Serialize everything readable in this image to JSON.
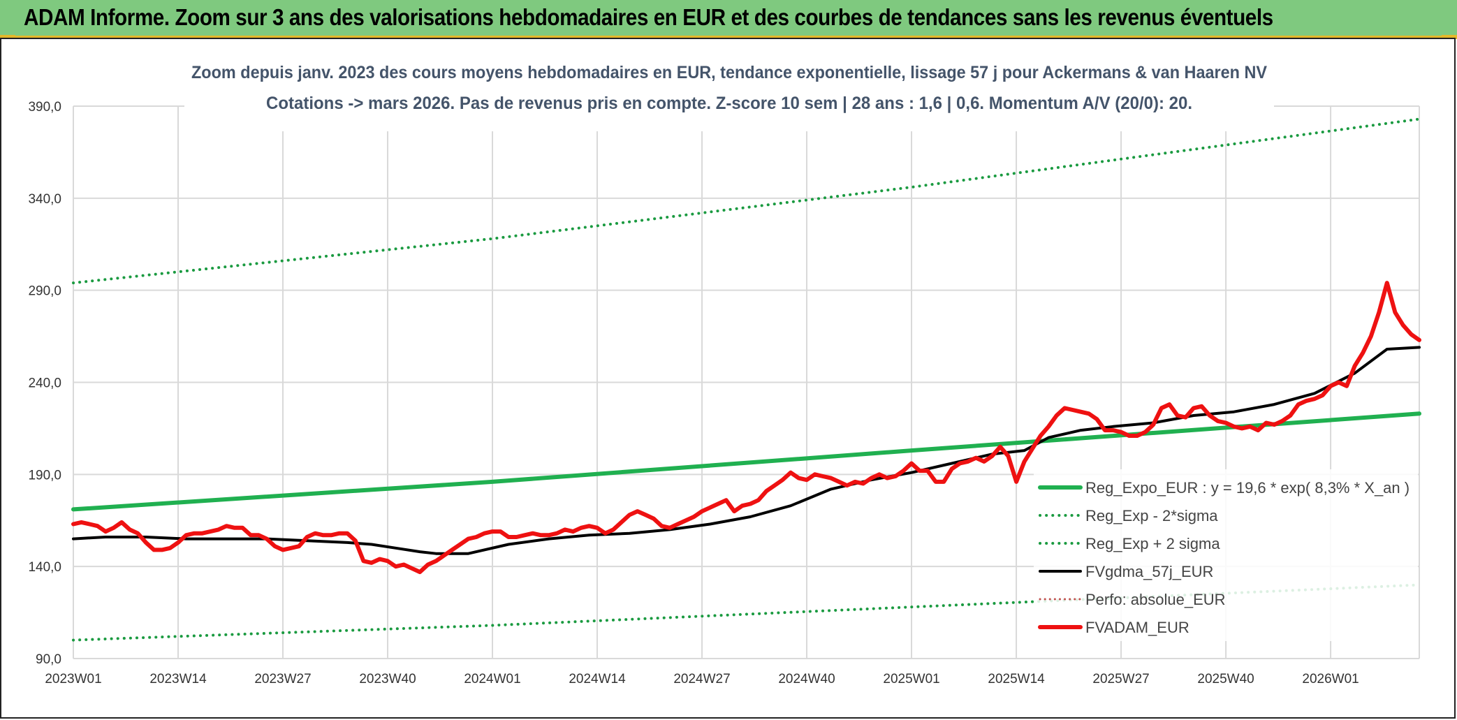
{
  "header": {
    "title": "ADAM Informe. Zoom sur 3 ans des valorisations hebdomadaires en EUR et des courbes de tendances sans les revenus éventuels"
  },
  "colors": {
    "banner": "#7fc97f",
    "accent": "#e3b72a",
    "reg_expo": "#20b050",
    "reg_band": "#1a9a40",
    "gdma": "#000000",
    "fvadam": "#ee1111",
    "perfo": "#c0504d",
    "grid": "#d9d9d9"
  },
  "chart_data": {
    "type": "line",
    "title": "Zoom depuis janv. 2023 des cours moyens hebdomadaires en EUR, tendance exponentielle, lissage 57 j pour Ackermans & van Haaren NV",
    "subtitle": "Cotations -> mars 2026. Pas de revenus pris en compte. Z-score 10 sem | 28 ans : 1,6 | 0,6. Momentum A/V (20/0): 20.",
    "xlabel": "",
    "ylabel": "",
    "ylim": [
      90,
      390
    ],
    "yticks": [
      "90,0",
      "140,0",
      "190,0",
      "240,0",
      "290,0",
      "340,0",
      "390,0"
    ],
    "ytick_values": [
      90,
      140,
      190,
      240,
      290,
      340,
      390
    ],
    "x_range": [
      1,
      168
    ],
    "xticks": [
      "2023W01",
      "2023W14",
      "2023W27",
      "2023W40",
      "2024W01",
      "2024W14",
      "2024W27",
      "2024W40",
      "2025W01",
      "2025W14",
      "2025W27",
      "2025W40",
      "2026W01"
    ],
    "xtick_weeks": [
      1,
      14,
      27,
      40,
      53,
      66,
      79,
      92,
      105,
      118,
      131,
      144,
      157
    ],
    "grid": true,
    "legend_position": "right",
    "series": [
      {
        "name": "Reg_Expo_EUR : y = 19,6 * exp( 8,3% *  X_an )",
        "style": "solid-thick",
        "color_key": "reg_expo",
        "points": [
          [
            1,
            171
          ],
          [
            53,
            186
          ],
          [
            105,
            203
          ],
          [
            168,
            223
          ]
        ]
      },
      {
        "name": "Reg_Exp - 2*sigma",
        "style": "dotted",
        "color_key": "reg_band",
        "points": [
          [
            1,
            100
          ],
          [
            53,
            108
          ],
          [
            105,
            118
          ],
          [
            168,
            130
          ]
        ]
      },
      {
        "name": "Reg_Exp + 2 sigma",
        "style": "dotted",
        "color_key": "reg_band",
        "points": [
          [
            1,
            294
          ],
          [
            53,
            318
          ],
          [
            105,
            346
          ],
          [
            168,
            383
          ]
        ]
      },
      {
        "name": "FVgdma_57j_EUR",
        "style": "solid",
        "color_key": "gdma",
        "points": [
          [
            1,
            155
          ],
          [
            5,
            156
          ],
          [
            10,
            156
          ],
          [
            15,
            155
          ],
          [
            20,
            155
          ],
          [
            25,
            155
          ],
          [
            30,
            154
          ],
          [
            35,
            153
          ],
          [
            38,
            152
          ],
          [
            41,
            150
          ],
          [
            44,
            148
          ],
          [
            46,
            147
          ],
          [
            50,
            147
          ],
          [
            55,
            152
          ],
          [
            60,
            155
          ],
          [
            65,
            157
          ],
          [
            70,
            158
          ],
          [
            75,
            160
          ],
          [
            80,
            163
          ],
          [
            85,
            167
          ],
          [
            90,
            173
          ],
          [
            95,
            182
          ],
          [
            100,
            187
          ],
          [
            105,
            191
          ],
          [
            110,
            196
          ],
          [
            115,
            201
          ],
          [
            119,
            203
          ],
          [
            122,
            210
          ],
          [
            126,
            214
          ],
          [
            130,
            216
          ],
          [
            135,
            218
          ],
          [
            140,
            222
          ],
          [
            145,
            224
          ],
          [
            150,
            228
          ],
          [
            155,
            234
          ],
          [
            160,
            245
          ],
          [
            164,
            258
          ],
          [
            168,
            259
          ]
        ]
      },
      {
        "name": "Perfo: absolue_EUR",
        "style": "dotted-thin",
        "color_key": "perfo",
        "points": []
      },
      {
        "name": "FVADAM_EUR",
        "style": "solid-thick",
        "color_key": "fvadam",
        "points": [
          [
            1,
            163
          ],
          [
            2,
            164
          ],
          [
            3,
            163
          ],
          [
            4,
            162
          ],
          [
            5,
            159
          ],
          [
            6,
            161
          ],
          [
            7,
            164
          ],
          [
            8,
            160
          ],
          [
            9,
            158
          ],
          [
            10,
            153
          ],
          [
            11,
            149
          ],
          [
            12,
            149
          ],
          [
            13,
            150
          ],
          [
            14,
            153
          ],
          [
            15,
            157
          ],
          [
            16,
            158
          ],
          [
            17,
            158
          ],
          [
            18,
            159
          ],
          [
            19,
            160
          ],
          [
            20,
            162
          ],
          [
            21,
            161
          ],
          [
            22,
            161
          ],
          [
            23,
            157
          ],
          [
            24,
            157
          ],
          [
            25,
            155
          ],
          [
            26,
            151
          ],
          [
            27,
            149
          ],
          [
            28,
            150
          ],
          [
            29,
            151
          ],
          [
            30,
            156
          ],
          [
            31,
            158
          ],
          [
            32,
            157
          ],
          [
            33,
            157
          ],
          [
            34,
            158
          ],
          [
            35,
            158
          ],
          [
            36,
            154
          ],
          [
            37,
            143
          ],
          [
            38,
            142
          ],
          [
            39,
            144
          ],
          [
            40,
            143
          ],
          [
            41,
            140
          ],
          [
            42,
            141
          ],
          [
            43,
            139
          ],
          [
            44,
            137
          ],
          [
            45,
            141
          ],
          [
            46,
            143
          ],
          [
            47,
            146
          ],
          [
            48,
            149
          ],
          [
            49,
            152
          ],
          [
            50,
            155
          ],
          [
            51,
            156
          ],
          [
            52,
            158
          ],
          [
            53,
            159
          ],
          [
            54,
            159
          ],
          [
            55,
            156
          ],
          [
            56,
            156
          ],
          [
            57,
            157
          ],
          [
            58,
            158
          ],
          [
            59,
            157
          ],
          [
            60,
            157
          ],
          [
            61,
            158
          ],
          [
            62,
            160
          ],
          [
            63,
            159
          ],
          [
            64,
            161
          ],
          [
            65,
            162
          ],
          [
            66,
            161
          ],
          [
            67,
            158
          ],
          [
            68,
            160
          ],
          [
            69,
            164
          ],
          [
            70,
            168
          ],
          [
            71,
            170
          ],
          [
            72,
            168
          ],
          [
            73,
            166
          ],
          [
            74,
            162
          ],
          [
            75,
            161
          ],
          [
            76,
            163
          ],
          [
            77,
            165
          ],
          [
            78,
            167
          ],
          [
            79,
            170
          ],
          [
            80,
            172
          ],
          [
            81,
            174
          ],
          [
            82,
            176
          ],
          [
            83,
            170
          ],
          [
            84,
            173
          ],
          [
            85,
            174
          ],
          [
            86,
            176
          ],
          [
            87,
            181
          ],
          [
            88,
            184
          ],
          [
            89,
            187
          ],
          [
            90,
            191
          ],
          [
            91,
            188
          ],
          [
            92,
            187
          ],
          [
            93,
            190
          ],
          [
            94,
            189
          ],
          [
            95,
            188
          ],
          [
            96,
            186
          ],
          [
            97,
            184
          ],
          [
            98,
            186
          ],
          [
            99,
            185
          ],
          [
            100,
            188
          ],
          [
            101,
            190
          ],
          [
            102,
            188
          ],
          [
            103,
            189
          ],
          [
            104,
            192
          ],
          [
            105,
            196
          ],
          [
            106,
            192
          ],
          [
            107,
            192
          ],
          [
            108,
            186
          ],
          [
            109,
            186
          ],
          [
            110,
            193
          ],
          [
            111,
            196
          ],
          [
            112,
            197
          ],
          [
            113,
            199
          ],
          [
            114,
            197
          ],
          [
            115,
            200
          ],
          [
            116,
            205
          ],
          [
            117,
            200
          ],
          [
            118,
            186
          ],
          [
            119,
            197
          ],
          [
            120,
            204
          ],
          [
            121,
            211
          ],
          [
            122,
            216
          ],
          [
            123,
            222
          ],
          [
            124,
            226
          ],
          [
            125,
            225
          ],
          [
            126,
            224
          ],
          [
            127,
            223
          ],
          [
            128,
            220
          ],
          [
            129,
            214
          ],
          [
            130,
            214
          ],
          [
            131,
            213
          ],
          [
            132,
            211
          ],
          [
            133,
            211
          ],
          [
            134,
            213
          ],
          [
            135,
            217
          ],
          [
            136,
            226
          ],
          [
            137,
            228
          ],
          [
            138,
            222
          ],
          [
            139,
            221
          ],
          [
            140,
            226
          ],
          [
            141,
            227
          ],
          [
            142,
            222
          ],
          [
            143,
            219
          ],
          [
            144,
            218
          ],
          [
            145,
            216
          ],
          [
            146,
            215
          ],
          [
            147,
            216
          ],
          [
            148,
            214
          ],
          [
            149,
            218
          ],
          [
            150,
            217
          ],
          [
            151,
            219
          ],
          [
            152,
            222
          ],
          [
            153,
            228
          ],
          [
            154,
            230
          ],
          [
            155,
            231
          ],
          [
            156,
            233
          ],
          [
            157,
            238
          ],
          [
            158,
            240
          ],
          [
            159,
            238
          ],
          [
            160,
            249
          ],
          [
            161,
            256
          ],
          [
            162,
            265
          ],
          [
            163,
            278
          ],
          [
            164,
            294
          ],
          [
            165,
            278
          ],
          [
            166,
            271
          ],
          [
            167,
            266
          ],
          [
            168,
            263
          ]
        ]
      }
    ]
  }
}
